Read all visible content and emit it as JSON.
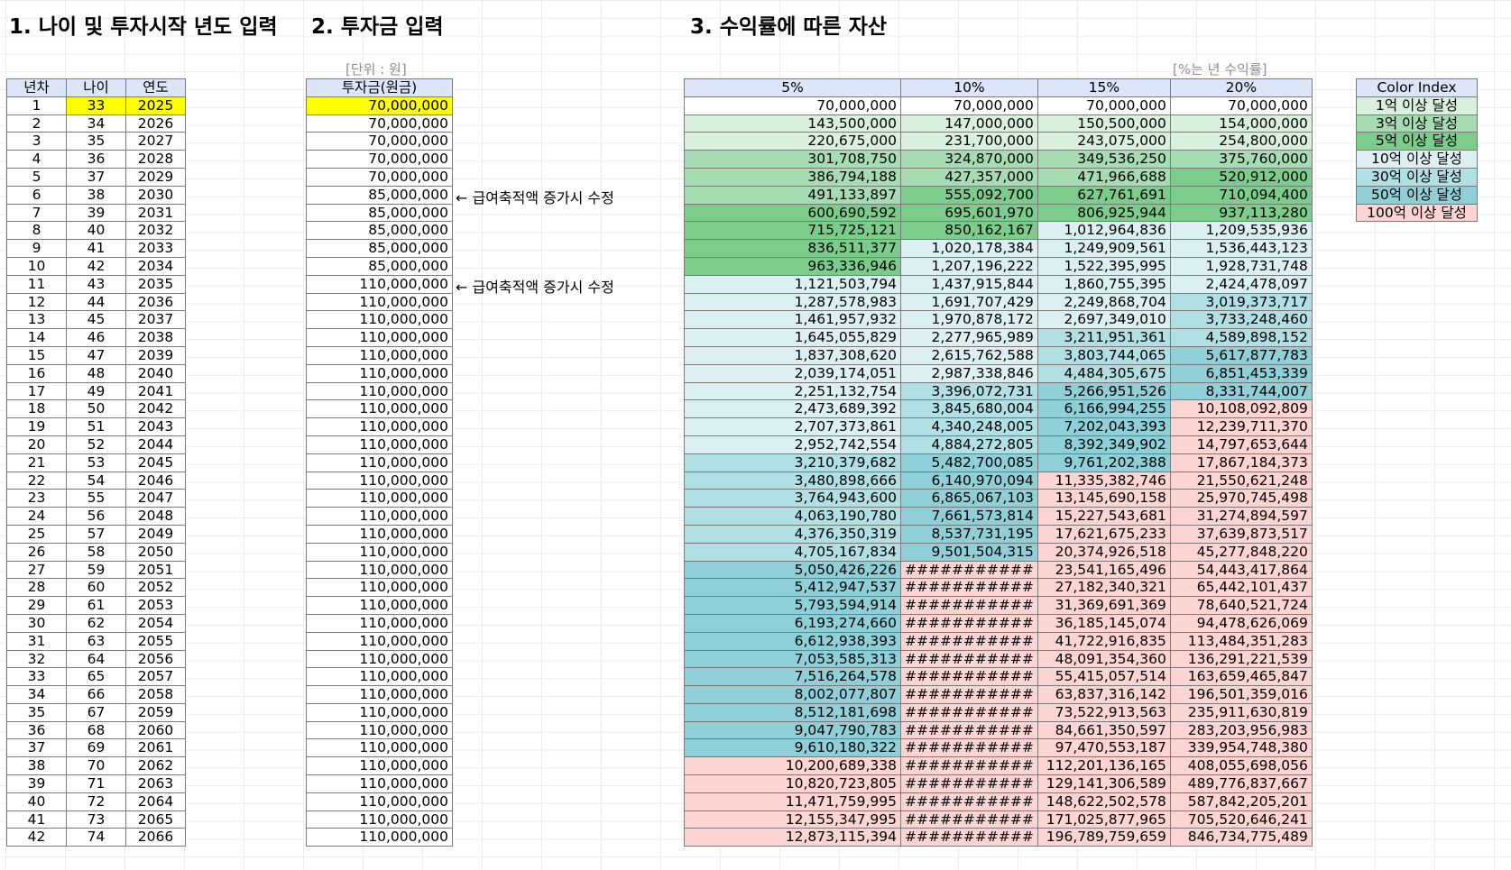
{
  "headings": {
    "section1": "1. 나이 및 투자시작 년도 입력",
    "section2": "2. 투자금 입력",
    "section3": "3. 수익률에 따른 자산"
  },
  "notes": {
    "unit": "[단위 : 원]",
    "rate": "[%는 년 수익률]",
    "arrow1": "← 급여축적액 증가시 수정",
    "arrow2": "← 급여축적액 증가시 수정"
  },
  "colors": {
    "bg_default": "#ffffff",
    "header_bg": "#dce6f8",
    "input_highlight": "#ffff00",
    "tier_100m": "#d8f0dc",
    "tier_300m": "#a6dcb2",
    "tier_500m": "#7ccd8c",
    "tier_1b": "#dcf0f3",
    "tier_3b": "#b0dfe4",
    "tier_5b": "#8fd0d8",
    "tier_10b": "#fcd5d2"
  },
  "years_table": {
    "headers": [
      "년차",
      "나이",
      "연도"
    ],
    "rows": [
      [
        "1",
        "33",
        "2025"
      ],
      [
        "2",
        "34",
        "2026"
      ],
      [
        "3",
        "35",
        "2027"
      ],
      [
        "4",
        "36",
        "2028"
      ],
      [
        "5",
        "37",
        "2029"
      ],
      [
        "6",
        "38",
        "2030"
      ],
      [
        "7",
        "39",
        "2031"
      ],
      [
        "8",
        "40",
        "2032"
      ],
      [
        "9",
        "41",
        "2033"
      ],
      [
        "10",
        "42",
        "2034"
      ],
      [
        "11",
        "43",
        "2035"
      ],
      [
        "12",
        "44",
        "2036"
      ],
      [
        "13",
        "45",
        "2037"
      ],
      [
        "14",
        "46",
        "2038"
      ],
      [
        "15",
        "47",
        "2039"
      ],
      [
        "16",
        "48",
        "2040"
      ],
      [
        "17",
        "49",
        "2041"
      ],
      [
        "18",
        "50",
        "2042"
      ],
      [
        "19",
        "51",
        "2043"
      ],
      [
        "20",
        "52",
        "2044"
      ],
      [
        "21",
        "53",
        "2045"
      ],
      [
        "22",
        "54",
        "2046"
      ],
      [
        "23",
        "55",
        "2047"
      ],
      [
        "24",
        "56",
        "2048"
      ],
      [
        "25",
        "57",
        "2049"
      ],
      [
        "26",
        "58",
        "2050"
      ],
      [
        "27",
        "59",
        "2051"
      ],
      [
        "28",
        "60",
        "2052"
      ],
      [
        "29",
        "61",
        "2053"
      ],
      [
        "30",
        "62",
        "2054"
      ],
      [
        "31",
        "63",
        "2055"
      ],
      [
        "32",
        "64",
        "2056"
      ],
      [
        "33",
        "65",
        "2057"
      ],
      [
        "34",
        "66",
        "2058"
      ],
      [
        "35",
        "67",
        "2059"
      ],
      [
        "36",
        "68",
        "2060"
      ],
      [
        "37",
        "69",
        "2061"
      ],
      [
        "38",
        "70",
        "2062"
      ],
      [
        "39",
        "71",
        "2063"
      ],
      [
        "40",
        "72",
        "2064"
      ],
      [
        "41",
        "73",
        "2065"
      ],
      [
        "42",
        "74",
        "2066"
      ]
    ]
  },
  "invest_table": {
    "header": "투자금(원금)",
    "values": [
      "70,000,000",
      "70,000,000",
      "70,000,000",
      "70,000,000",
      "70,000,000",
      "85,000,000",
      "85,000,000",
      "85,000,000",
      "85,000,000",
      "85,000,000",
      "110,000,000",
      "110,000,000",
      "110,000,000",
      "110,000,000",
      "110,000,000",
      "110,000,000",
      "110,000,000",
      "110,000,000",
      "110,000,000",
      "110,000,000",
      "110,000,000",
      "110,000,000",
      "110,000,000",
      "110,000,000",
      "110,000,000",
      "110,000,000",
      "110,000,000",
      "110,000,000",
      "110,000,000",
      "110,000,000",
      "110,000,000",
      "110,000,000",
      "110,000,000",
      "110,000,000",
      "110,000,000",
      "110,000,000",
      "110,000,000",
      "110,000,000",
      "110,000,000",
      "110,000,000",
      "110,000,000",
      "110,000,000"
    ]
  },
  "assets_table": {
    "headers": [
      "5%",
      "10%",
      "15%",
      "20%"
    ],
    "rows": [
      [
        "70,000,000",
        "70,000,000",
        "70,000,000",
        "70,000,000"
      ],
      [
        "143,500,000",
        "147,000,000",
        "150,500,000",
        "154,000,000"
      ],
      [
        "220,675,000",
        "231,700,000",
        "243,075,000",
        "254,800,000"
      ],
      [
        "301,708,750",
        "324,870,000",
        "349,536,250",
        "375,760,000"
      ],
      [
        "386,794,188",
        "427,357,000",
        "471,966,688",
        "520,912,000"
      ],
      [
        "491,133,897",
        "555,092,700",
        "627,761,691",
        "710,094,400"
      ],
      [
        "600,690,592",
        "695,601,970",
        "806,925,944",
        "937,113,280"
      ],
      [
        "715,725,121",
        "850,162,167",
        "1,012,964,836",
        "1,209,535,936"
      ],
      [
        "836,511,377",
        "1,020,178,384",
        "1,249,909,561",
        "1,536,443,123"
      ],
      [
        "963,336,946",
        "1,207,196,222",
        "1,522,395,995",
        "1,928,731,748"
      ],
      [
        "1,121,503,794",
        "1,437,915,844",
        "1,860,755,395",
        "2,424,478,097"
      ],
      [
        "1,287,578,983",
        "1,691,707,429",
        "2,249,868,704",
        "3,019,373,717"
      ],
      [
        "1,461,957,932",
        "1,970,878,172",
        "2,697,349,010",
        "3,733,248,460"
      ],
      [
        "1,645,055,829",
        "2,277,965,989",
        "3,211,951,361",
        "4,589,898,152"
      ],
      [
        "1,837,308,620",
        "2,615,762,588",
        "3,803,744,065",
        "5,617,877,783"
      ],
      [
        "2,039,174,051",
        "2,987,338,846",
        "4,484,305,675",
        "6,851,453,339"
      ],
      [
        "2,251,132,754",
        "3,396,072,731",
        "5,266,951,526",
        "8,331,744,007"
      ],
      [
        "2,473,689,392",
        "3,845,680,004",
        "6,166,994,255",
        "10,108,092,809"
      ],
      [
        "2,707,373,861",
        "4,340,248,005",
        "7,202,043,393",
        "12,239,711,370"
      ],
      [
        "2,952,742,554",
        "4,884,272,805",
        "8,392,349,902",
        "14,797,653,644"
      ],
      [
        "3,210,379,682",
        "5,482,700,085",
        "9,761,202,388",
        "17,867,184,373"
      ],
      [
        "3,480,898,666",
        "6,140,970,094",
        "11,335,382,746",
        "21,550,621,248"
      ],
      [
        "3,764,943,600",
        "6,865,067,103",
        "13,145,690,158",
        "25,970,745,498"
      ],
      [
        "4,063,190,780",
        "7,661,573,814",
        "15,227,543,681",
        "31,274,894,597"
      ],
      [
        "4,376,350,319",
        "8,537,731,195",
        "17,621,675,233",
        "37,639,873,517"
      ],
      [
        "4,705,167,834",
        "9,501,504,315",
        "20,374,926,518",
        "45,277,848,220"
      ],
      [
        "5,050,426,226",
        "###########",
        "23,541,165,496",
        "54,443,417,864"
      ],
      [
        "5,412,947,537",
        "###########",
        "27,182,340,321",
        "65,442,101,437"
      ],
      [
        "5,793,594,914",
        "###########",
        "31,369,691,369",
        "78,640,521,724"
      ],
      [
        "6,193,274,660",
        "###########",
        "36,185,145,074",
        "94,478,626,069"
      ],
      [
        "6,612,938,393",
        "###########",
        "41,722,916,835",
        "113,484,351,283"
      ],
      [
        "7,053,585,313",
        "###########",
        "48,091,354,360",
        "136,291,221,539"
      ],
      [
        "7,516,264,578",
        "###########",
        "55,415,057,514",
        "163,659,465,847"
      ],
      [
        "8,002,077,807",
        "###########",
        "63,837,316,142",
        "196,501,359,016"
      ],
      [
        "8,512,181,698",
        "###########",
        "73,522,913,563",
        "235,911,630,819"
      ],
      [
        "9,047,790,783",
        "###########",
        "84,661,350,597",
        "283,203,956,983"
      ],
      [
        "9,610,180,322",
        "###########",
        "97,470,553,187",
        "339,954,748,380"
      ],
      [
        "10,200,689,338",
        "###########",
        "112,201,136,165",
        "408,055,698,056"
      ],
      [
        "10,820,723,805",
        "###########",
        "129,141,306,589",
        "489,776,837,667"
      ],
      [
        "11,471,759,995",
        "###########",
        "148,622,502,578",
        "587,842,205,201"
      ],
      [
        "12,155,347,995",
        "###########",
        "171,025,877,965",
        "705,520,646,241"
      ],
      [
        "12,873,115,394",
        "###########",
        "196,789,759,659",
        "846,734,775,489"
      ]
    ]
  },
  "legend": {
    "title": "Color Index",
    "items": [
      {
        "label": "1억 이상 달성",
        "color": "#d8f0dc"
      },
      {
        "label": "3억 이상 달성",
        "color": "#a6dcb2"
      },
      {
        "label": "5억 이상 달성",
        "color": "#7ccd8c"
      },
      {
        "label": "10억 이상 달성",
        "color": "#dcf0f3"
      },
      {
        "label": "30억 이상 달성",
        "color": "#b0dfe4"
      },
      {
        "label": "50억 이상 달성",
        "color": "#8fd0d8"
      },
      {
        "label": "100억 이상 달성",
        "color": "#fcd5d2"
      }
    ]
  }
}
